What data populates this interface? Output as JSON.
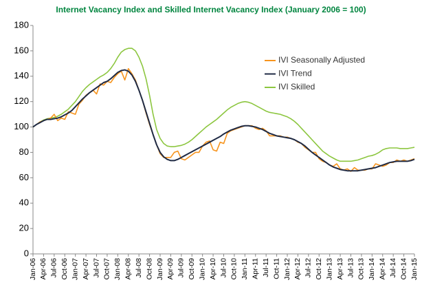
{
  "chart_data": {
    "type": "line",
    "title": "Internet Vacancy Index and Skilled Internet Vacancy Index (January 2006 = 100)",
    "categories": [
      "Jan-06",
      null,
      null,
      "Apr-06",
      null,
      null,
      "Jul-06",
      null,
      null,
      "Oct-06",
      null,
      null,
      "Jan-07",
      null,
      null,
      "Apr-07",
      null,
      null,
      "Jul-07",
      null,
      null,
      "Oct-07",
      null,
      null,
      "Jan-08",
      null,
      null,
      "Apr-08",
      null,
      null,
      "Jul-08",
      null,
      null,
      "Oct-08",
      null,
      null,
      "Jan-09",
      null,
      null,
      "Apr-09",
      null,
      null,
      "Jul-09",
      null,
      null,
      "Oct-09",
      null,
      null,
      "Jan-10",
      null,
      null,
      "Apr-10",
      null,
      null,
      "Jul-10",
      null,
      null,
      "Oct-10",
      null,
      null,
      "Jan-11",
      null,
      null,
      "Apr-11",
      null,
      null,
      "Jul-11",
      null,
      null,
      "Oct-11",
      null,
      null,
      "Jan-12",
      null,
      null,
      "Apr-12",
      null,
      null,
      "Jul-12",
      null,
      null,
      "Oct-12",
      null,
      null,
      "Jan-13",
      null,
      null,
      "Apr-13",
      null,
      null,
      "Jul-13",
      null,
      null,
      "Oct-13",
      null,
      null,
      "Jan-14",
      null,
      null,
      "Apr-14",
      null,
      null,
      "Jul-14",
      null,
      null,
      "Oct-14",
      null,
      null,
      "Jan-15"
    ],
    "series": [
      {
        "name": "IVI Seasonally Adjusted",
        "color": "#f7941d",
        "values": [
          100,
          102,
          104,
          105,
          106,
          107,
          110,
          105,
          107,
          106,
          112,
          111,
          110,
          118,
          121,
          125,
          127,
          129,
          126,
          134,
          133,
          136,
          135,
          139,
          142,
          144,
          137,
          146,
          142,
          137,
          129,
          121,
          111,
          102,
          94,
          86,
          79,
          76,
          76,
          76,
          80,
          81,
          75,
          74,
          76,
          78,
          80,
          80,
          85,
          88,
          89,
          82,
          81,
          88,
          87,
          95,
          97,
          98,
          99,
          100,
          101,
          101,
          101,
          99,
          98,
          99,
          97,
          93,
          93,
          93,
          93,
          92,
          92,
          91,
          90,
          88,
          87,
          84,
          82,
          80,
          80,
          75,
          73,
          72,
          70,
          69,
          71,
          67,
          66,
          67,
          65,
          68,
          66,
          66,
          66,
          67,
          67,
          71,
          70,
          69,
          70,
          72,
          72,
          74,
          73,
          74,
          73,
          74,
          75
        ]
      },
      {
        "name": "IVI Trend",
        "color": "#1f2a44",
        "values": [
          100,
          102,
          103.5,
          105,
          106,
          106,
          106.5,
          107,
          108,
          109.5,
          111,
          113,
          116,
          119,
          122,
          124.5,
          127,
          129,
          131,
          133,
          135,
          136,
          138,
          140.5,
          143,
          144.5,
          145,
          144,
          141,
          136,
          129,
          121,
          112,
          103,
          94,
          86,
          80,
          76.5,
          74.5,
          73.5,
          73.5,
          74.5,
          76,
          77.5,
          79,
          80.5,
          82,
          83.5,
          85,
          86.5,
          88,
          89.5,
          91,
          92.5,
          94.5,
          96,
          97.5,
          98.5,
          99.5,
          100.5,
          101,
          101,
          100.5,
          100,
          99,
          98,
          96.5,
          95,
          94,
          93,
          92.5,
          92,
          91.5,
          91,
          90,
          88.5,
          87,
          85,
          82.5,
          80,
          78,
          76,
          74,
          72,
          70,
          68.5,
          67.5,
          66.5,
          66,
          65.5,
          65.5,
          65.5,
          65.5,
          66,
          66.5,
          67,
          67.5,
          68,
          69,
          70,
          71,
          72,
          72.5,
          73,
          73,
          73,
          73,
          73.5,
          74.5
        ]
      },
      {
        "name": "IVI Skilled",
        "color": "#8cc63f",
        "values": [
          100,
          102,
          104,
          105.5,
          106.5,
          107,
          107.5,
          108.5,
          110,
          112,
          114,
          117,
          120,
          124,
          128,
          131,
          133.5,
          135.5,
          137.5,
          139.5,
          141,
          143,
          146,
          150,
          155,
          159,
          161,
          162,
          162,
          160,
          155,
          148,
          138,
          125,
          110,
          98,
          91,
          87,
          85,
          84.5,
          84.5,
          85,
          85.5,
          86.5,
          88,
          90,
          92.5,
          95,
          97.5,
          100,
          102,
          104,
          106,
          108.5,
          111,
          113.5,
          115.5,
          117,
          118.5,
          119.5,
          120,
          119.5,
          118.5,
          117,
          115.5,
          114,
          112.5,
          111.5,
          111,
          110.5,
          110,
          109,
          108,
          106.5,
          104.5,
          102,
          99,
          96,
          93,
          90,
          87,
          84,
          81,
          79,
          77,
          75.5,
          74,
          73,
          73,
          73,
          73,
          73.5,
          74,
          75,
          76,
          77,
          77.5,
          78.5,
          80,
          82,
          83,
          83.5,
          83.5,
          83.5,
          83,
          83,
          83,
          83.5,
          84
        ]
      }
    ],
    "ylim": [
      0,
      180
    ],
    "yticks": [
      0,
      20,
      40,
      60,
      80,
      100,
      120,
      140,
      160,
      180
    ],
    "grid": false,
    "legend": "right"
  }
}
